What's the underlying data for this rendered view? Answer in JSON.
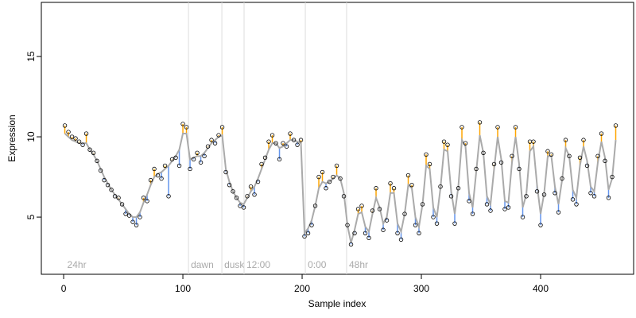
{
  "chart_data": {
    "type": "scatter",
    "xlabel": "Sample index",
    "ylabel": "Expression",
    "xlim": [
      -18.7,
      478
    ],
    "ylim": [
      1.44,
      18.37
    ],
    "xticks": [
      0,
      100,
      200,
      300,
      400
    ],
    "yticks": [
      5,
      10,
      15
    ],
    "above_color": "#ffa500",
    "below_color": "#6495ed",
    "markers": [
      {
        "x": 1,
        "label": "24hr",
        "line": false
      },
      {
        "x": 104.7,
        "label": "dawn",
        "line": true
      },
      {
        "x": 132.7,
        "label": "dusk",
        "line": true
      },
      {
        "x": 151.3,
        "label": "12:00",
        "line": true
      },
      {
        "x": 202.7,
        "label": "0:00",
        "line": true
      },
      {
        "x": 237.3,
        "label": "48hr",
        "line": true
      }
    ],
    "x": [
      1,
      4,
      7,
      10,
      13,
      16,
      19,
      22,
      25,
      28,
      31,
      34,
      37,
      40,
      43,
      46,
      49,
      52,
      55,
      58,
      61,
      64,
      67,
      70,
      73,
      76,
      79,
      82,
      85,
      88,
      91,
      94,
      97,
      100,
      103,
      106,
      109,
      112,
      115,
      118,
      121,
      124,
      127,
      130,
      133,
      136,
      139,
      142,
      145,
      148,
      151,
      154,
      157,
      160,
      163,
      166,
      169,
      172,
      175,
      178,
      181,
      184,
      187,
      190,
      193,
      196,
      199,
      202,
      205,
      208,
      211,
      214,
      217,
      220,
      223,
      226,
      229,
      232,
      235,
      238,
      241,
      244,
      247,
      250,
      253,
      256,
      259,
      262,
      265,
      268,
      271,
      274,
      277,
      280,
      283,
      286,
      289,
      292,
      295,
      298,
      301,
      304,
      307,
      310,
      313,
      316,
      319,
      322,
      325,
      328,
      331,
      334,
      337,
      340,
      343,
      346,
      349,
      352,
      355,
      358,
      361,
      364,
      367,
      370,
      373,
      376,
      379,
      382,
      385,
      388,
      391,
      394,
      397,
      400,
      403,
      406,
      409,
      412,
      415,
      418,
      421,
      424,
      427,
      430,
      433,
      436,
      439,
      442,
      445,
      448,
      451,
      454,
      457,
      460,
      463
    ],
    "series": [
      {
        "style": "points",
        "color": "#000000",
        "values": [
          10.7,
          10.3,
          10.0,
          9.9,
          9.7,
          9.5,
          10.2,
          9.2,
          9.0,
          8.5,
          7.9,
          7.3,
          7.0,
          6.7,
          6.3,
          6.2,
          5.8,
          5.2,
          5.1,
          4.7,
          4.5,
          5.0,
          6.2,
          6.0,
          7.3,
          8.0,
          7.6,
          7.4,
          8.2,
          6.3,
          8.6,
          8.7,
          8.2,
          10.8,
          10.6,
          8.0,
          8.6,
          9.0,
          8.4,
          8.8,
          9.4,
          9.8,
          9.6,
          10.1,
          10.6,
          7.8,
          7.0,
          6.6,
          6.2,
          5.7,
          5.6,
          6.3,
          6.9,
          6.4,
          7.2,
          8.3,
          8.7,
          9.7,
          10.1,
          9.6,
          8.6,
          9.6,
          9.4,
          10.2,
          9.8,
          9.5,
          9.8,
          3.8,
          4.0,
          4.5,
          5.7,
          7.5,
          7.8,
          6.8,
          7.2,
          7.5,
          8.2,
          7.4,
          6.3,
          4.5,
          3.3,
          4.0,
          5.5,
          5.7,
          4.0,
          3.7,
          5.4,
          6.8,
          5.5,
          4.2,
          4.8,
          7.1,
          6.8,
          4.0,
          3.6,
          5.2,
          7.6,
          7.0,
          4.5,
          4.0,
          5.8,
          8.9,
          8.3,
          5.0,
          4.6,
          6.9,
          9.7,
          9.5,
          6.3,
          4.6,
          6.8,
          10.6,
          9.6,
          6.0,
          5.2,
          8.0,
          10.9,
          9.0,
          5.8,
          5.4,
          8.3,
          10.6,
          8.4,
          5.5,
          5.6,
          8.8,
          10.6,
          8.0,
          5.0,
          6.3,
          9.7,
          9.7,
          6.6,
          4.5,
          6.4,
          9.1,
          8.9,
          6.5,
          5.3,
          7.4,
          9.8,
          8.8,
          6.1,
          5.8,
          8.7,
          9.8,
          8.2,
          6.5,
          6.3,
          8.8,
          10.2,
          8.5,
          6.2,
          7.5,
          10.7
        ]
      },
      {
        "style": "line",
        "color": "#aaaaaa",
        "values": [
          10.2,
          10.0,
          9.8,
          9.7,
          9.6,
          9.6,
          9.6,
          9.2,
          8.9,
          8.5,
          8.0,
          7.5,
          7.1,
          6.7,
          6.4,
          6.1,
          5.8,
          5.5,
          5.2,
          5.0,
          5.0,
          5.3,
          5.9,
          6.4,
          7.0,
          7.5,
          7.7,
          7.8,
          8.0,
          8.2,
          8.5,
          8.8,
          9.2,
          10.2,
          10.2,
          8.6,
          8.7,
          8.8,
          8.8,
          9.0,
          9.3,
          9.6,
          9.8,
          10.0,
          10.1,
          8.0,
          7.2,
          6.6,
          6.2,
          5.9,
          5.8,
          6.2,
          6.6,
          6.9,
          7.4,
          8.0,
          8.6,
          9.2,
          9.6,
          9.6,
          9.3,
          9.4,
          9.6,
          9.8,
          9.8,
          9.7,
          9.6,
          4.0,
          4.3,
          4.8,
          5.7,
          6.8,
          7.2,
          7.1,
          7.2,
          7.4,
          7.6,
          7.4,
          6.5,
          4.5,
          3.4,
          4.2,
          5.2,
          5.3,
          4.4,
          4.1,
          5.2,
          6.2,
          5.6,
          4.6,
          5.0,
          6.5,
          6.5,
          4.6,
          4.1,
          5.2,
          7.0,
          6.8,
          5.0,
          4.4,
          5.8,
          8.2,
          8.0,
          5.6,
          5.0,
          6.8,
          9.2,
          9.1,
          6.6,
          5.2,
          6.9,
          9.8,
          9.4,
          6.5,
          5.6,
          7.8,
          10.1,
          9.0,
          6.3,
          5.8,
          8.0,
          10.0,
          8.6,
          6.0,
          5.9,
          8.4,
          10.0,
          8.3,
          5.6,
          6.4,
          9.1,
          9.4,
          7.0,
          5.2,
          6.5,
          8.8,
          8.8,
          6.9,
          5.8,
          7.3,
          9.3,
          8.8,
          6.7,
          6.2,
          8.2,
          9.4,
          8.5,
          6.9,
          6.6,
          8.4,
          9.7,
          8.7,
          6.7,
          7.4,
          9.8
        ]
      }
    ]
  }
}
